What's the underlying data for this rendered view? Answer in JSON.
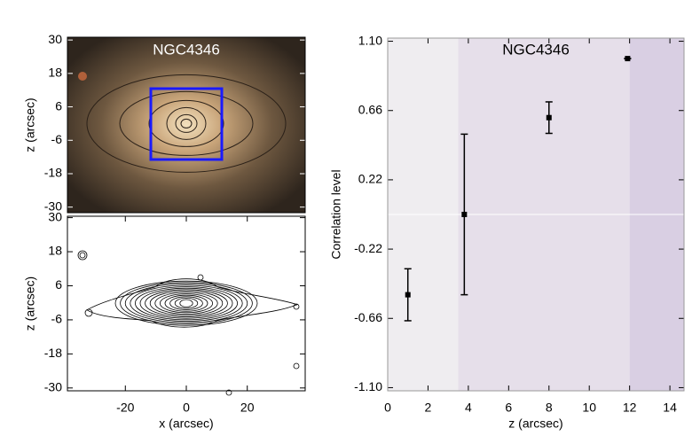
{
  "chart_data": [
    {
      "type": "image",
      "title": "NGC4346",
      "y_label": "z (arcsec)",
      "xlim": [
        -39,
        39
      ],
      "ylim": [
        -32,
        31
      ],
      "yticks": [
        30,
        18,
        6,
        -6,
        -18,
        -30
      ]
    },
    {
      "type": "contour",
      "x_label": "x (arcsec)",
      "y_label": "z (arcsec)",
      "xlim": [
        -39,
        39
      ],
      "ylim": [
        -31,
        30.5
      ],
      "xticks": [
        -20,
        0,
        20
      ],
      "yticks": [
        30,
        18,
        6,
        -6,
        -18,
        -30
      ]
    },
    {
      "type": "errorbar",
      "title": "NGC4346",
      "x_label": "z (arcsec)",
      "y_label": "Correlation level",
      "x": [
        1,
        3.8,
        8,
        11.9
      ],
      "values": [
        -0.51,
        0,
        0.615,
        0.99
      ],
      "errors": [
        0.165,
        0.51,
        0.1,
        0
      ],
      "color": "#000000",
      "xlim": [
        0,
        14.7
      ],
      "ylim": [
        -1.12,
        1.12
      ],
      "xticks": [
        0,
        2,
        4,
        6,
        8,
        10,
        12,
        14
      ],
      "yticks": [
        {
          "value": 1.1,
          "label": "1.10"
        },
        0.66,
        0.22,
        -0.22,
        -0.66,
        {
          "value": -1.1,
          "label": "-1.10"
        }
      ],
      "bands": [
        {
          "from": 0,
          "to": 3.5,
          "color": "#efedf0"
        },
        {
          "from": 3.5,
          "to": 12,
          "color": "#e6dfea"
        },
        {
          "from": 12,
          "to": 14.7,
          "color": "#d9cfe3"
        }
      ],
      "hline": 0
    }
  ]
}
